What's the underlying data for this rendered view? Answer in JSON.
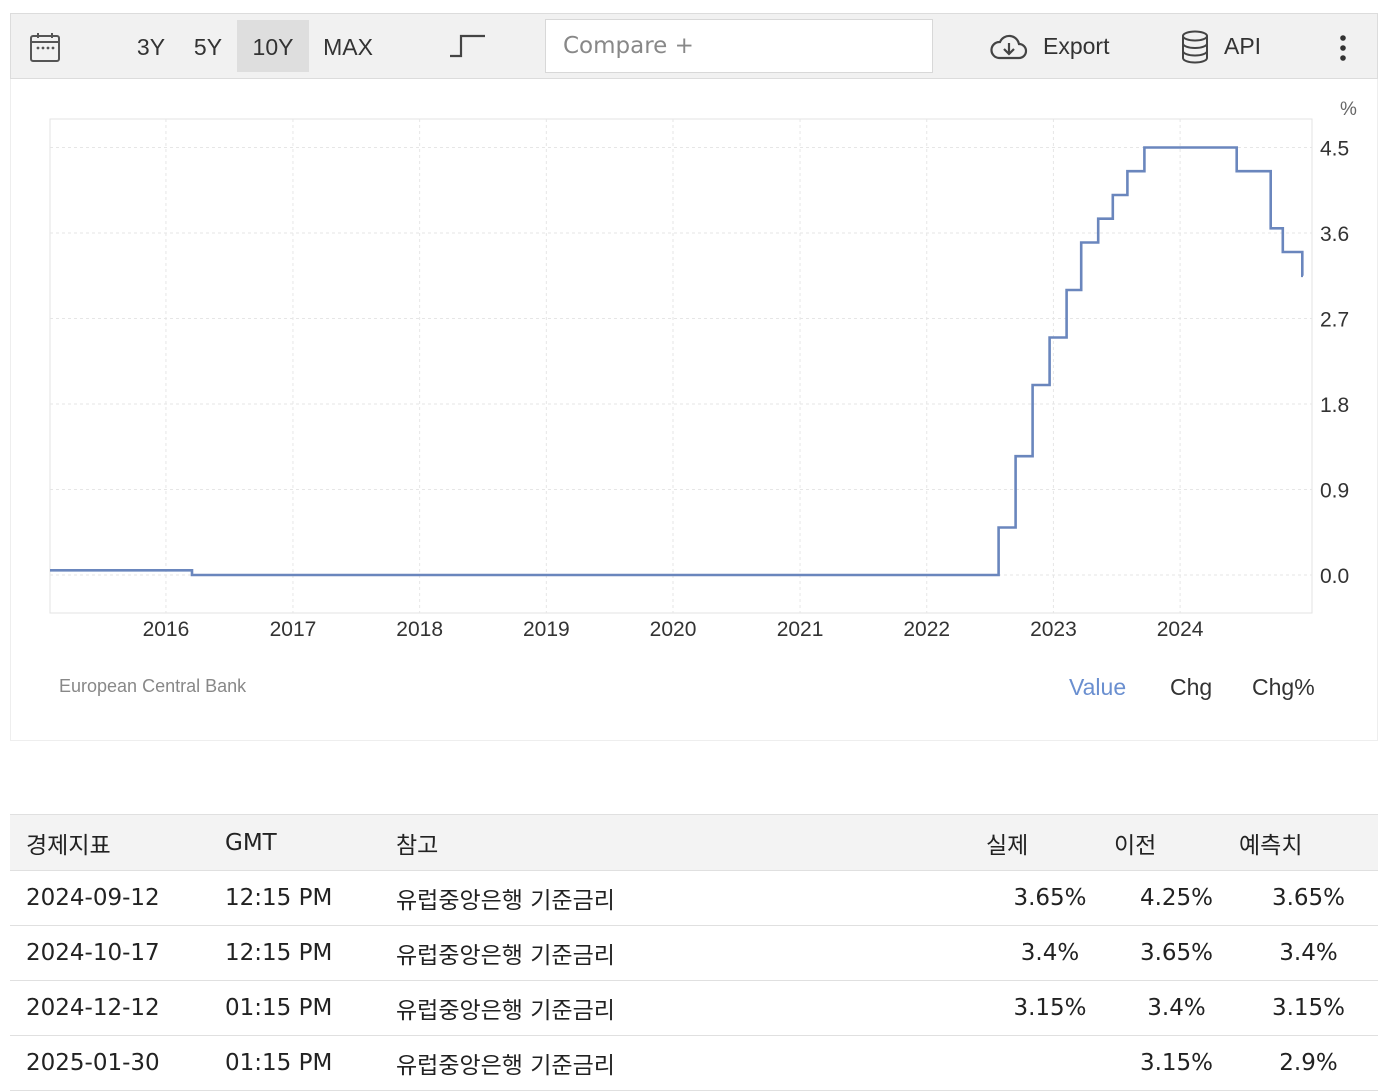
{
  "toolbar": {
    "ranges": [
      "3Y",
      "5Y",
      "10Y",
      "MAX"
    ],
    "active_range": "10Y",
    "compare_placeholder": "Compare +",
    "export_label": "Export",
    "api_label": "API",
    "icons": [
      "calendar-icon",
      "step-chart-icon",
      "cloud-download-icon",
      "database-icon",
      "more-vertical-icon"
    ]
  },
  "chart_data": {
    "type": "line",
    "style": "step",
    "unit": "%",
    "source": "European Central Bank",
    "x_ticks": [
      "2016",
      "2017",
      "2018",
      "2019",
      "2020",
      "2021",
      "2022",
      "2023",
      "2024"
    ],
    "y_ticks": [
      "4.5",
      "3.6",
      "2.7",
      "1.8",
      "0.9",
      "0.0"
    ],
    "ylim": [
      -0.4,
      4.8
    ],
    "xlim": [
      "2015-02-01",
      "2025-01-15"
    ],
    "grid": true,
    "line_color": "#6a86bd",
    "series": [
      {
        "points": [
          [
            "2015-02-01",
            0.05
          ],
          [
            "2016-03-16",
            0.0
          ],
          [
            "2022-07-27",
            0.5
          ],
          [
            "2022-09-14",
            1.25
          ],
          [
            "2022-11-02",
            2.0
          ],
          [
            "2022-12-21",
            2.5
          ],
          [
            "2023-02-08",
            3.0
          ],
          [
            "2023-03-22",
            3.5
          ],
          [
            "2023-05-10",
            3.75
          ],
          [
            "2023-06-21",
            4.0
          ],
          [
            "2023-08-02",
            4.25
          ],
          [
            "2023-09-20",
            4.5
          ],
          [
            "2024-06-12",
            4.25
          ],
          [
            "2024-09-18",
            3.65
          ],
          [
            "2024-10-23",
            3.4
          ],
          [
            "2024-12-18",
            3.15
          ]
        ],
        "end": "2024-12-20"
      }
    ],
    "view_tabs": [
      "Value",
      "Chg",
      "Chg%"
    ],
    "active_tab": "Value"
  },
  "table": {
    "headers": [
      "경제지표",
      "GMT",
      "참고",
      "실제",
      "이전",
      "예측치"
    ],
    "rows": [
      [
        "2024-09-12",
        "12:15 PM",
        "유럽중앙은행 기준금리",
        "3.65%",
        "4.25%",
        "3.65%"
      ],
      [
        "2024-10-17",
        "12:15 PM",
        "유럽중앙은행 기준금리",
        "3.4%",
        "3.65%",
        "3.4%"
      ],
      [
        "2024-12-12",
        "01:15 PM",
        "유럽중앙은행 기준금리",
        "3.15%",
        "3.4%",
        "3.15%"
      ],
      [
        "2025-01-30",
        "01:15 PM",
        "유럽중앙은행 기준금리",
        "",
        "3.15%",
        "2.9%"
      ]
    ]
  }
}
